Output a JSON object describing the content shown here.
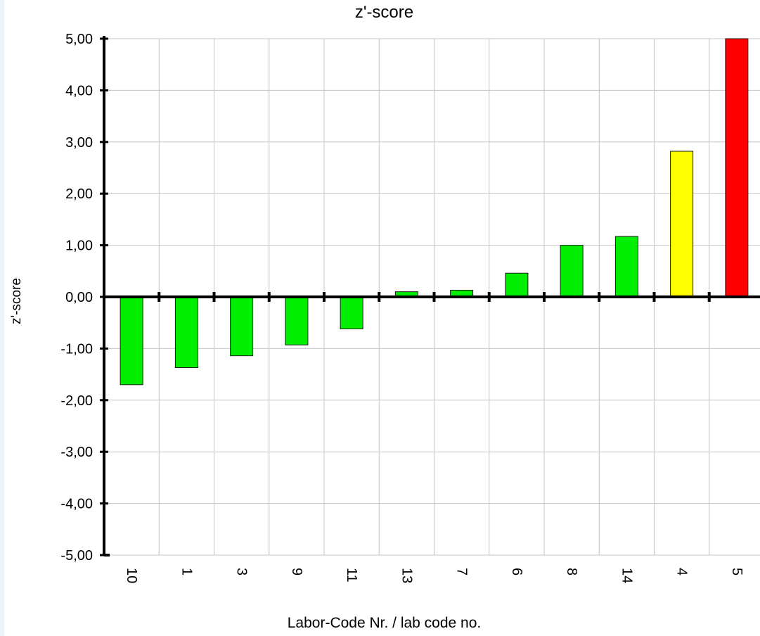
{
  "chart_data": {
    "type": "bar",
    "title": "z'-score",
    "xlabel": "Labor-Code Nr. / lab code no.",
    "ylabel": "z'-score",
    "ylim": [
      -5,
      5
    ],
    "yticks": [
      "5,00",
      "4,00",
      "3,00",
      "2,00",
      "1,00",
      "0,00",
      "-1,00",
      "-2,00",
      "-3,00",
      "-4,00",
      "-5,00"
    ],
    "categories": [
      "10",
      "1",
      "3",
      "9",
      "11",
      "13",
      "7",
      "6",
      "8",
      "14",
      "4",
      "5"
    ],
    "values": [
      -1.7,
      -1.37,
      -1.14,
      -0.93,
      -0.62,
      0.1,
      0.13,
      0.46,
      1.0,
      1.17,
      2.82,
      5.0
    ],
    "colors": [
      "#00ee00",
      "#00ee00",
      "#00ee00",
      "#00ee00",
      "#00ee00",
      "#00ee00",
      "#00ee00",
      "#00ee00",
      "#00ee00",
      "#00ee00",
      "#ffff00",
      "#ff0000"
    ],
    "grid": true,
    "legend": "none"
  }
}
